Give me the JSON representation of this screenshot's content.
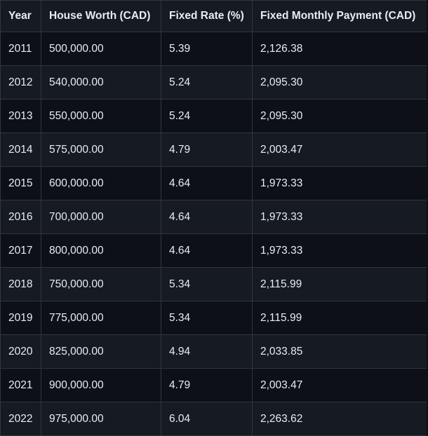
{
  "table": {
    "headers": [
      "Year",
      "House Worth (CAD)",
      "Fixed Rate (%)",
      "Fixed Monthly Payment (CAD)"
    ],
    "rows": [
      [
        "2011",
        "500,000.00",
        "5.39",
        "2,126.38"
      ],
      [
        "2012",
        "540,000.00",
        "5.24",
        "2,095.30"
      ],
      [
        "2013",
        "550,000.00",
        "5.24",
        "2,095.30"
      ],
      [
        "2014",
        "575,000.00",
        "4.79",
        "2,003.47"
      ],
      [
        "2015",
        "600,000.00",
        "4.64",
        "1,973.33"
      ],
      [
        "2016",
        "700,000.00",
        "4.64",
        "1,973.33"
      ],
      [
        "2017",
        "800,000.00",
        "4.64",
        "1,973.33"
      ],
      [
        "2018",
        "750,000.00",
        "5.34",
        "2,115.99"
      ],
      [
        "2019",
        "775,000.00",
        "5.34",
        "2,115.99"
      ],
      [
        "2020",
        "825,000.00",
        "4.94",
        "2,033.85"
      ],
      [
        "2021",
        "900,000.00",
        "4.79",
        "2,003.47"
      ],
      [
        "2022",
        "975,000.00",
        "6.04",
        "2,263.62"
      ]
    ]
  },
  "colors": {
    "background": "#0d1117",
    "header_background": "#161b22",
    "border": "#30363d",
    "text": "#e6edf3"
  }
}
